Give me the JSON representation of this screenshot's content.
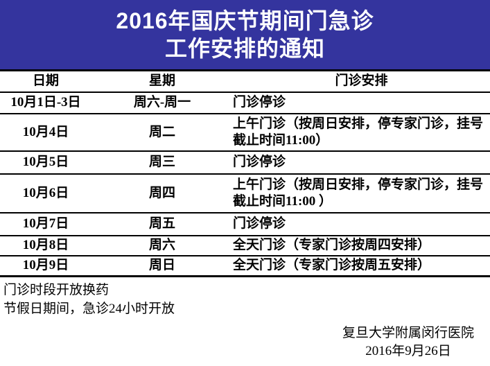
{
  "banner": {
    "title_line1": "2016年国庆节期间门急诊",
    "title_line2": "工作安排的通知"
  },
  "table": {
    "headers": [
      "日期",
      "星期",
      "门诊安排"
    ],
    "rows": [
      {
        "date": "10月1日-3日",
        "weekday": "周六-周一",
        "arrangement": "门诊停诊"
      },
      {
        "date": "10月4日",
        "weekday": "周二",
        "arrangement": "上午门诊（按周日安排，停专家门诊，挂号截止时间11:00）"
      },
      {
        "date": "10月5日",
        "weekday": "周三",
        "arrangement": "门诊停诊"
      },
      {
        "date": "10月6日",
        "weekday": "周四",
        "arrangement": "上午门诊（按周日安排，停专家门诊，挂号截止时间11:00 ）"
      },
      {
        "date": "10月7日",
        "weekday": "周五",
        "arrangement": "门诊停诊"
      },
      {
        "date": "10月8日",
        "weekday": "周六",
        "arrangement": "全天门诊（专家门诊按周四安排）"
      },
      {
        "date": "10月9日",
        "weekday": "周日",
        "arrangement": "全天门诊（专家门诊按周五安排）"
      }
    ]
  },
  "notes": [
    "门诊时段开放换药",
    "节假日期间，急诊24小时开放"
  ],
  "signature": {
    "org": "复旦大学附属闵行医院",
    "date": "2016年9月26日"
  },
  "colors": {
    "banner_bg": "#34349E",
    "banner_text": "#FFFFFF",
    "table_border": "#000000",
    "body_text": "#000000"
  }
}
